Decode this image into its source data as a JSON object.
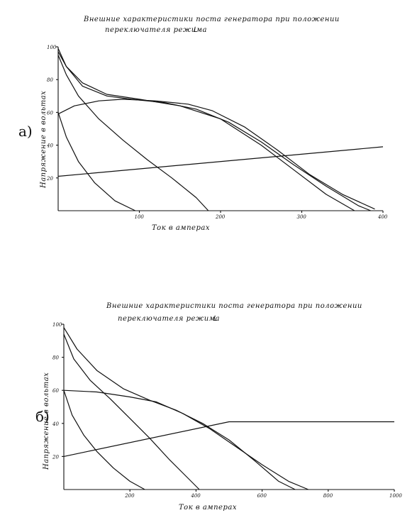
{
  "chart_data": [
    {
      "type": "line",
      "panel_label": "а)",
      "title": "Внешние характеристики поста генератора при положении переключателя режима",
      "title_lines": [
        "Внешние характеристики поста генератора при положении",
        "переключателя режима"
      ],
      "title_symbol": "ᒪ",
      "xlabel": "Ток в амперах",
      "ylabel": "Напряжение в вольтах",
      "xlim": [
        0,
        400
      ],
      "ylim": [
        0,
        100
      ],
      "xticks": [
        "100",
        "200",
        "300",
        "400"
      ],
      "xtick_values": [
        100,
        200,
        300,
        400
      ],
      "yticks": [
        "20",
        "40",
        "60",
        "80",
        "100"
      ],
      "ytick_values": [
        20,
        40,
        60,
        80,
        100
      ],
      "grid": false,
      "series": [
        {
          "x": [
            0,
            10,
            25,
            45,
            70,
            95
          ],
          "y": [
            60,
            45,
            30,
            17,
            6,
            0
          ]
        },
        {
          "x": [
            0,
            10,
            25,
            50,
            80,
            110,
            140,
            170,
            185
          ],
          "y": [
            95,
            83,
            70,
            56,
            43,
            31,
            20,
            8,
            0
          ]
        },
        {
          "x": [
            0,
            10,
            30,
            60,
            100,
            150,
            200,
            250,
            290,
            330,
            365
          ],
          "y": [
            97,
            88,
            78,
            71,
            68,
            64,
            56,
            40,
            25,
            10,
            0
          ]
        },
        {
          "x": [
            0,
            10,
            30,
            60,
            90,
            130,
            170,
            210,
            250,
            290,
            330,
            370,
            385
          ],
          "y": [
            99,
            88,
            76,
            70,
            68,
            66,
            62,
            54,
            42,
            28,
            15,
            3,
            0
          ]
        },
        {
          "x": [
            0,
            20,
            50,
            80,
            120,
            160,
            190,
            230,
            270,
            310,
            350,
            390
          ],
          "y": [
            59,
            64,
            67,
            68,
            67,
            65,
            61,
            51,
            37,
            22,
            10,
            1
          ]
        },
        {
          "x": [
            0,
            400
          ],
          "y": [
            21,
            39
          ]
        }
      ]
    },
    {
      "type": "line",
      "panel_label": "б)",
      "title": "Внешние характеристики поста генератора при положении переключателя режима",
      "title_lines": [
        "Внешние характеристики поста генератора при положении",
        "переключателя режима"
      ],
      "title_symbol": "ᒪ",
      "xlabel": "Ток в амперах",
      "ylabel": "Напряжение в вольтах",
      "xlim": [
        0,
        1000
      ],
      "ylim": [
        0,
        100
      ],
      "xticks": [
        "200",
        "400",
        "600",
        "800",
        "1000"
      ],
      "xtick_values": [
        200,
        400,
        600,
        800,
        1000
      ],
      "yticks": [
        "20",
        "40",
        "60",
        "80",
        "100"
      ],
      "ytick_values": [
        20,
        40,
        60,
        80,
        100
      ],
      "grid": false,
      "series": [
        {
          "x": [
            0,
            25,
            60,
            100,
            150,
            200,
            245
          ],
          "y": [
            60,
            45,
            33,
            23,
            13,
            5,
            0
          ]
        },
        {
          "x": [
            0,
            30,
            80,
            140,
            200,
            260,
            320,
            380,
            410
          ],
          "y": [
            94,
            79,
            66,
            55,
            43,
            31,
            18,
            6,
            0
          ]
        },
        {
          "x": [
            0,
            40,
            100,
            180,
            260,
            340,
            420,
            500,
            580,
            650,
            700
          ],
          "y": [
            98,
            85,
            72,
            61,
            54,
            48,
            40,
            30,
            17,
            5,
            0
          ]
        },
        {
          "x": [
            0,
            100,
            200,
            280,
            360,
            440,
            520,
            600,
            680,
            740
          ],
          "y": [
            60,
            59,
            56,
            53,
            46,
            37,
            26,
            15,
            5,
            0
          ]
        },
        {
          "x": [
            0,
            500,
            1000
          ],
          "y": [
            20,
            41,
            41
          ]
        }
      ]
    }
  ]
}
